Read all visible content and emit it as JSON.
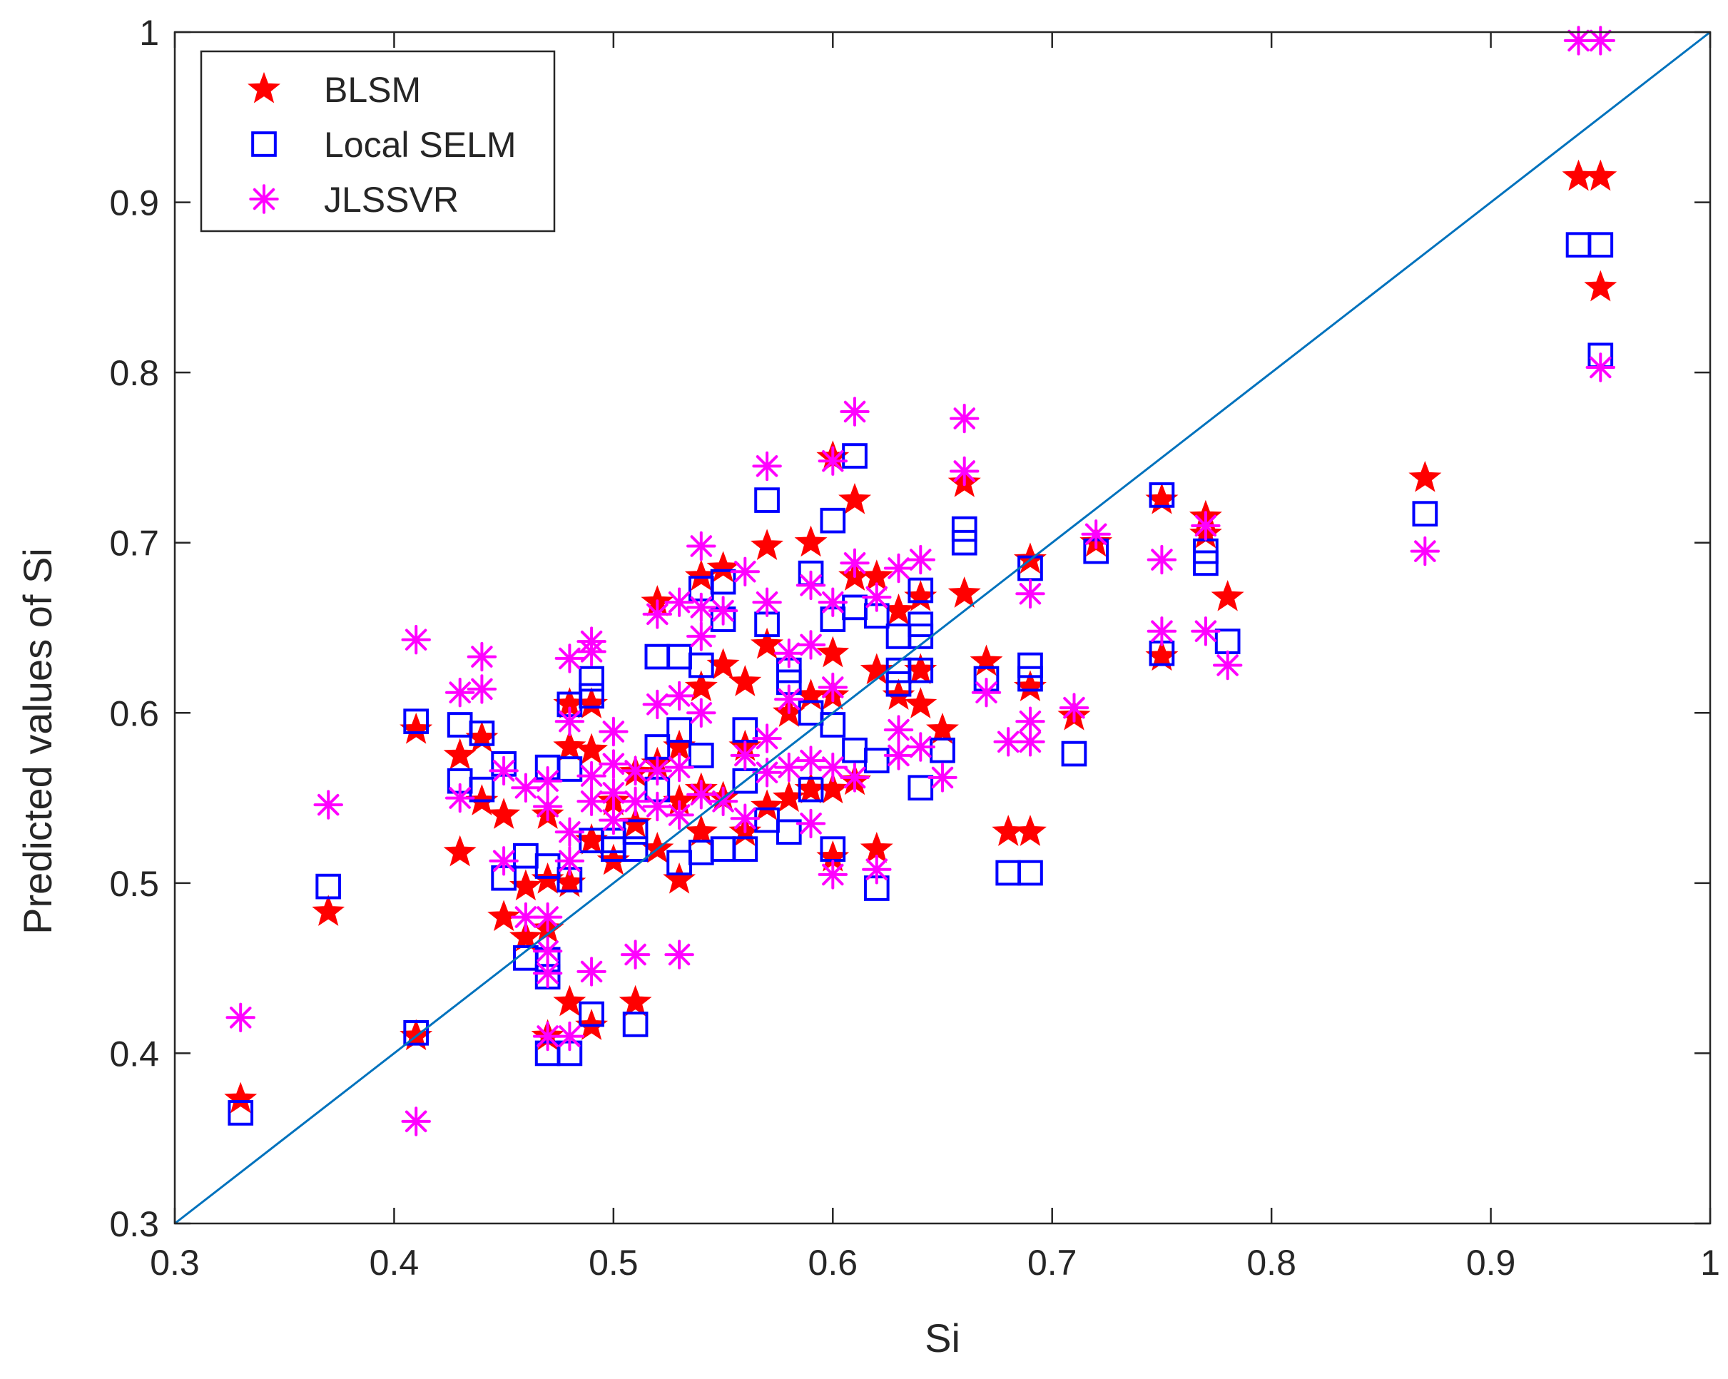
{
  "chart_data": {
    "type": "scatter",
    "title": "",
    "xlabel": "Si",
    "ylabel": "Predicted values of Si",
    "xlim": [
      0.3,
      1
    ],
    "ylim": [
      0.3,
      1
    ],
    "grid": false,
    "legend_position": "top-left",
    "xticks": [
      0.3,
      0.4,
      0.5,
      0.6,
      0.7,
      0.8,
      0.9,
      1
    ],
    "xtick_labels": [
      "0.3",
      "0.4",
      "0.5",
      "0.6",
      "0.7",
      "0.8",
      "0.9",
      "1"
    ],
    "yticks": [
      0.3,
      0.4,
      0.5,
      0.6,
      0.7,
      0.8,
      0.9,
      1
    ],
    "ytick_labels": [
      "0.3",
      "0.4",
      "0.5",
      "0.6",
      "0.7",
      "0.8",
      "0.9",
      "1"
    ],
    "reference_line": {
      "x": [
        0.3,
        1
      ],
      "y": [
        0.3,
        1
      ],
      "color": "#0072BD"
    },
    "series": [
      {
        "name": "BLSM",
        "marker": "star",
        "color": "#FF0000",
        "points": [
          [
            0.33,
            0.373
          ],
          [
            0.37,
            0.483
          ],
          [
            0.41,
            0.41
          ],
          [
            0.41,
            0.59
          ],
          [
            0.43,
            0.518
          ],
          [
            0.43,
            0.575
          ],
          [
            0.44,
            0.585
          ],
          [
            0.44,
            0.548
          ],
          [
            0.45,
            0.54
          ],
          [
            0.45,
            0.48
          ],
          [
            0.46,
            0.498
          ],
          [
            0.46,
            0.468
          ],
          [
            0.47,
            0.502
          ],
          [
            0.47,
            0.473
          ],
          [
            0.47,
            0.41
          ],
          [
            0.47,
            0.54
          ],
          [
            0.48,
            0.605
          ],
          [
            0.48,
            0.58
          ],
          [
            0.48,
            0.5
          ],
          [
            0.48,
            0.43
          ],
          [
            0.49,
            0.605
          ],
          [
            0.49,
            0.578
          ],
          [
            0.49,
            0.525
          ],
          [
            0.49,
            0.416
          ],
          [
            0.5,
            0.513
          ],
          [
            0.5,
            0.548
          ],
          [
            0.51,
            0.43
          ],
          [
            0.51,
            0.565
          ],
          [
            0.51,
            0.535
          ],
          [
            0.52,
            0.665
          ],
          [
            0.52,
            0.57
          ],
          [
            0.52,
            0.52
          ],
          [
            0.53,
            0.58
          ],
          [
            0.53,
            0.548
          ],
          [
            0.53,
            0.502
          ],
          [
            0.54,
            0.68
          ],
          [
            0.54,
            0.615
          ],
          [
            0.54,
            0.555
          ],
          [
            0.54,
            0.53
          ],
          [
            0.55,
            0.685
          ],
          [
            0.55,
            0.628
          ],
          [
            0.55,
            0.55
          ],
          [
            0.56,
            0.618
          ],
          [
            0.56,
            0.58
          ],
          [
            0.56,
            0.53
          ],
          [
            0.57,
            0.698
          ],
          [
            0.57,
            0.64
          ],
          [
            0.57,
            0.545
          ],
          [
            0.58,
            0.6
          ],
          [
            0.58,
            0.55
          ],
          [
            0.59,
            0.7
          ],
          [
            0.59,
            0.61
          ],
          [
            0.59,
            0.555
          ],
          [
            0.6,
            0.75
          ],
          [
            0.6,
            0.635
          ],
          [
            0.6,
            0.61
          ],
          [
            0.6,
            0.555
          ],
          [
            0.6,
            0.515
          ],
          [
            0.61,
            0.725
          ],
          [
            0.61,
            0.68
          ],
          [
            0.61,
            0.56
          ],
          [
            0.62,
            0.68
          ],
          [
            0.62,
            0.625
          ],
          [
            0.62,
            0.52
          ],
          [
            0.63,
            0.66
          ],
          [
            0.63,
            0.61
          ],
          [
            0.64,
            0.668
          ],
          [
            0.64,
            0.625
          ],
          [
            0.64,
            0.605
          ],
          [
            0.65,
            0.59
          ],
          [
            0.66,
            0.735
          ],
          [
            0.66,
            0.67
          ],
          [
            0.67,
            0.63
          ],
          [
            0.68,
            0.53
          ],
          [
            0.69,
            0.69
          ],
          [
            0.69,
            0.615
          ],
          [
            0.69,
            0.53
          ],
          [
            0.71,
            0.598
          ],
          [
            0.72,
            0.7
          ],
          [
            0.75,
            0.725
          ],
          [
            0.75,
            0.633
          ],
          [
            0.77,
            0.715
          ],
          [
            0.77,
            0.705
          ],
          [
            0.78,
            0.668
          ],
          [
            0.87,
            0.738
          ],
          [
            0.94,
            0.915
          ],
          [
            0.95,
            0.915
          ],
          [
            0.95,
            0.85
          ]
        ]
      },
      {
        "name": "Local SELM",
        "marker": "square",
        "color": "#0000FF",
        "points": [
          [
            0.33,
            0.365
          ],
          [
            0.37,
            0.498
          ],
          [
            0.41,
            0.595
          ],
          [
            0.41,
            0.412
          ],
          [
            0.43,
            0.593
          ],
          [
            0.43,
            0.56
          ],
          [
            0.44,
            0.588
          ],
          [
            0.44,
            0.555
          ],
          [
            0.45,
            0.57
          ],
          [
            0.45,
            0.503
          ],
          [
            0.46,
            0.516
          ],
          [
            0.46,
            0.456
          ],
          [
            0.47,
            0.568
          ],
          [
            0.47,
            0.51
          ],
          [
            0.47,
            0.455
          ],
          [
            0.47,
            0.445
          ],
          [
            0.47,
            0.4
          ],
          [
            0.48,
            0.605
          ],
          [
            0.48,
            0.567
          ],
          [
            0.48,
            0.502
          ],
          [
            0.48,
            0.4
          ],
          [
            0.49,
            0.62
          ],
          [
            0.49,
            0.61
          ],
          [
            0.49,
            0.525
          ],
          [
            0.49,
            0.423
          ],
          [
            0.5,
            0.525
          ],
          [
            0.5,
            0.52
          ],
          [
            0.51,
            0.53
          ],
          [
            0.51,
            0.52
          ],
          [
            0.51,
            0.417
          ],
          [
            0.52,
            0.633
          ],
          [
            0.52,
            0.58
          ],
          [
            0.52,
            0.555
          ],
          [
            0.53,
            0.633
          ],
          [
            0.53,
            0.59
          ],
          [
            0.53,
            0.512
          ],
          [
            0.54,
            0.673
          ],
          [
            0.54,
            0.628
          ],
          [
            0.54,
            0.575
          ],
          [
            0.54,
            0.518
          ],
          [
            0.55,
            0.677
          ],
          [
            0.55,
            0.655
          ],
          [
            0.55,
            0.52
          ],
          [
            0.56,
            0.59
          ],
          [
            0.56,
            0.56
          ],
          [
            0.56,
            0.52
          ],
          [
            0.57,
            0.725
          ],
          [
            0.57,
            0.652
          ],
          [
            0.57,
            0.537
          ],
          [
            0.58,
            0.625
          ],
          [
            0.58,
            0.618
          ],
          [
            0.58,
            0.53
          ],
          [
            0.59,
            0.682
          ],
          [
            0.59,
            0.6
          ],
          [
            0.59,
            0.555
          ],
          [
            0.6,
            0.713
          ],
          [
            0.6,
            0.655
          ],
          [
            0.6,
            0.593
          ],
          [
            0.6,
            0.52
          ],
          [
            0.61,
            0.751
          ],
          [
            0.61,
            0.662
          ],
          [
            0.61,
            0.578
          ],
          [
            0.62,
            0.657
          ],
          [
            0.62,
            0.572
          ],
          [
            0.62,
            0.497
          ],
          [
            0.63,
            0.645
          ],
          [
            0.63,
            0.625
          ],
          [
            0.63,
            0.617
          ],
          [
            0.64,
            0.672
          ],
          [
            0.64,
            0.652
          ],
          [
            0.64,
            0.645
          ],
          [
            0.64,
            0.625
          ],
          [
            0.64,
            0.556
          ],
          [
            0.65,
            0.578
          ],
          [
            0.66,
            0.708
          ],
          [
            0.66,
            0.7
          ],
          [
            0.67,
            0.62
          ],
          [
            0.68,
            0.506
          ],
          [
            0.69,
            0.685
          ],
          [
            0.69,
            0.628
          ],
          [
            0.69,
            0.62
          ],
          [
            0.69,
            0.506
          ],
          [
            0.71,
            0.576
          ],
          [
            0.72,
            0.695
          ],
          [
            0.75,
            0.728
          ],
          [
            0.75,
            0.635
          ],
          [
            0.77,
            0.695
          ],
          [
            0.77,
            0.688
          ],
          [
            0.78,
            0.642
          ],
          [
            0.87,
            0.717
          ],
          [
            0.94,
            0.875
          ],
          [
            0.95,
            0.875
          ],
          [
            0.95,
            0.81
          ]
        ]
      },
      {
        "name": "JLSSVR",
        "marker": "asterisk",
        "color": "#FF00FF",
        "points": [
          [
            0.33,
            0.421
          ],
          [
            0.37,
            0.546
          ],
          [
            0.41,
            0.643
          ],
          [
            0.41,
            0.36
          ],
          [
            0.43,
            0.612
          ],
          [
            0.43,
            0.55
          ],
          [
            0.44,
            0.633
          ],
          [
            0.44,
            0.614
          ],
          [
            0.45,
            0.566
          ],
          [
            0.45,
            0.513
          ],
          [
            0.46,
            0.556
          ],
          [
            0.46,
            0.48
          ],
          [
            0.47,
            0.56
          ],
          [
            0.47,
            0.545
          ],
          [
            0.47,
            0.48
          ],
          [
            0.47,
            0.46
          ],
          [
            0.47,
            0.447
          ],
          [
            0.47,
            0.41
          ],
          [
            0.48,
            0.632
          ],
          [
            0.48,
            0.595
          ],
          [
            0.48,
            0.53
          ],
          [
            0.48,
            0.513
          ],
          [
            0.48,
            0.41
          ],
          [
            0.49,
            0.642
          ],
          [
            0.49,
            0.636
          ],
          [
            0.49,
            0.563
          ],
          [
            0.49,
            0.548
          ],
          [
            0.49,
            0.448
          ],
          [
            0.5,
            0.589
          ],
          [
            0.5,
            0.57
          ],
          [
            0.5,
            0.553
          ],
          [
            0.5,
            0.537
          ],
          [
            0.51,
            0.566
          ],
          [
            0.51,
            0.548
          ],
          [
            0.51,
            0.458
          ],
          [
            0.52,
            0.658
          ],
          [
            0.52,
            0.605
          ],
          [
            0.52,
            0.566
          ],
          [
            0.52,
            0.545
          ],
          [
            0.53,
            0.665
          ],
          [
            0.53,
            0.61
          ],
          [
            0.53,
            0.568
          ],
          [
            0.53,
            0.54
          ],
          [
            0.53,
            0.458
          ],
          [
            0.54,
            0.698
          ],
          [
            0.54,
            0.662
          ],
          [
            0.54,
            0.645
          ],
          [
            0.54,
            0.6
          ],
          [
            0.54,
            0.552
          ],
          [
            0.55,
            0.66
          ],
          [
            0.55,
            0.548
          ],
          [
            0.56,
            0.683
          ],
          [
            0.56,
            0.575
          ],
          [
            0.56,
            0.538
          ],
          [
            0.57,
            0.745
          ],
          [
            0.57,
            0.665
          ],
          [
            0.57,
            0.585
          ],
          [
            0.57,
            0.565
          ],
          [
            0.58,
            0.635
          ],
          [
            0.58,
            0.608
          ],
          [
            0.58,
            0.568
          ],
          [
            0.59,
            0.675
          ],
          [
            0.59,
            0.64
          ],
          [
            0.59,
            0.572
          ],
          [
            0.59,
            0.535
          ],
          [
            0.6,
            0.748
          ],
          [
            0.6,
            0.665
          ],
          [
            0.6,
            0.615
          ],
          [
            0.6,
            0.568
          ],
          [
            0.6,
            0.505
          ],
          [
            0.61,
            0.777
          ],
          [
            0.61,
            0.688
          ],
          [
            0.61,
            0.562
          ],
          [
            0.62,
            0.668
          ],
          [
            0.62,
            0.508
          ],
          [
            0.63,
            0.685
          ],
          [
            0.63,
            0.59
          ],
          [
            0.63,
            0.575
          ],
          [
            0.64,
            0.69
          ],
          [
            0.64,
            0.58
          ],
          [
            0.65,
            0.562
          ],
          [
            0.66,
            0.773
          ],
          [
            0.66,
            0.742
          ],
          [
            0.67,
            0.612
          ],
          [
            0.68,
            0.583
          ],
          [
            0.69,
            0.67
          ],
          [
            0.69,
            0.595
          ],
          [
            0.69,
            0.583
          ],
          [
            0.71,
            0.603
          ],
          [
            0.72,
            0.705
          ],
          [
            0.75,
            0.69
          ],
          [
            0.75,
            0.648
          ],
          [
            0.77,
            0.71
          ],
          [
            0.77,
            0.648
          ],
          [
            0.78,
            0.628
          ],
          [
            0.87,
            0.695
          ],
          [
            0.94,
            0.995
          ],
          [
            0.95,
            0.995
          ],
          [
            0.95,
            0.803
          ]
        ]
      }
    ]
  }
}
